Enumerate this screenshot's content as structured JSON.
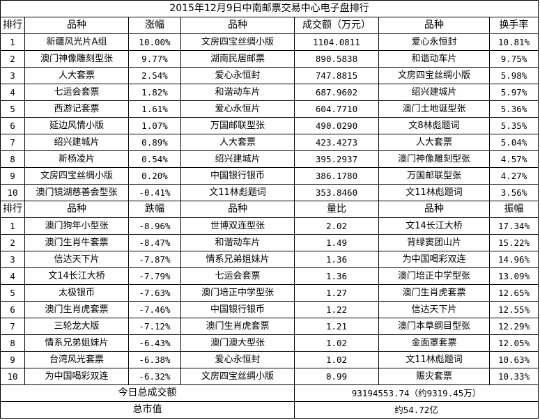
{
  "title": "2015年12月9日中南邮票交易中心电子盘排行",
  "top_section": {
    "headers": [
      "排行",
      "品种",
      "涨幅",
      "品种",
      "成交额（万元）",
      "品种",
      "换手率"
    ],
    "rows": [
      [
        "1",
        "新疆风光片A组",
        "10.00%",
        "文房四宝丝绸小版",
        "1104.0811",
        "爱心永恒封",
        "10.81%"
      ],
      [
        "2",
        "澳门神像雕刻型张",
        "9.77%",
        "湖南民居邮票",
        "890.5838",
        "和谐动车片",
        "9.75%"
      ],
      [
        "3",
        "人大套票",
        "2.54%",
        "爱心永恒封",
        "747.8815",
        "文房四宝丝绸小版",
        "5.98%"
      ],
      [
        "4",
        "七运会套票",
        "1.82%",
        "和谐动车片",
        "687.9602",
        "绍兴建城片",
        "5.97%"
      ],
      [
        "5",
        "西游记套票",
        "1.61%",
        "爱心永恒片",
        "604.7710",
        "澳门土地诞型张",
        "5.36%"
      ],
      [
        "6",
        "延边风情小版",
        "1.07%",
        "万国邮联型张",
        "490.0290",
        "文8林彪题词",
        "5.35%"
      ],
      [
        "7",
        "绍兴建城片",
        "0.89%",
        "人大套票",
        "423.4273",
        "人大套票",
        "5.04%"
      ],
      [
        "8",
        "新杨凌片",
        "0.54%",
        "绍兴建城片",
        "395.2937",
        "澳门神像雕刻型张",
        "4.57%"
      ],
      [
        "9",
        "文房四宝丝绸小版",
        "0.20%",
        "中国银行银币",
        "386.1780",
        "万国邮联型张",
        "4.27%"
      ],
      [
        "10",
        "澳门镜湖慈善会型张",
        "-0.41%",
        "文11林彪题词",
        "353.8460",
        "文11林彪题词",
        "3.56%"
      ]
    ]
  },
  "bottom_section": {
    "headers": [
      "排行",
      "品种",
      "跌幅",
      "品种",
      "量比",
      "品种",
      "振幅"
    ],
    "rows": [
      [
        "1",
        "澳门狗年小型张",
        "-8.96%",
        "世博双连型张",
        "2.02",
        "文14长江大桥",
        "17.34%"
      ],
      [
        "2",
        "澳门生肖牛套票",
        "-8.47%",
        "和谐动车片",
        "1.49",
        "背绿窦团山片",
        "15.22%"
      ],
      [
        "3",
        "信达天下片",
        "-7.87%",
        "情系兄弟姐妹片",
        "1.36",
        "为中国喝彩双连",
        "14.96%"
      ],
      [
        "4",
        "文14长江大桥",
        "-7.79%",
        "七运会套票",
        "1.36",
        "澳门培正中学型张",
        "13.09%"
      ],
      [
        "5",
        "太极银币",
        "-7.63%",
        "澳门培正中学型张",
        "1.27",
        "澳门生肖虎套票",
        "12.65%"
      ],
      [
        "6",
        "澳门生肖虎套票",
        "-7.46%",
        "中国银行银币",
        "1.22",
        "信达天下片",
        "12.55%"
      ],
      [
        "7",
        "三轮龙大版",
        "-7.12%",
        "澳门生肖虎套票",
        "1.21",
        "澳门本草纲目型张",
        "12.29%"
      ],
      [
        "8",
        "情系兄弟姐妹片",
        "-6.43%",
        "澳门澳大型张",
        "1.02",
        "金面罩套票",
        "12.05%"
      ],
      [
        "9",
        "台湾风光套票",
        "-6.38%",
        "爱心永恒封",
        "1.02",
        "文11林彪题词",
        "10.63%"
      ],
      [
        "10",
        "为中国喝彩双连",
        "-6.32%",
        "文房四宝丝绸小版",
        "0.99",
        "赈灾套票",
        "10.33%"
      ]
    ]
  },
  "summary": {
    "total_turnover_label": "今日总成交额",
    "total_turnover_value": "93194553.74（约9319.45万）",
    "market_cap_label": "总市值",
    "market_cap_value": "约54.72亿"
  }
}
